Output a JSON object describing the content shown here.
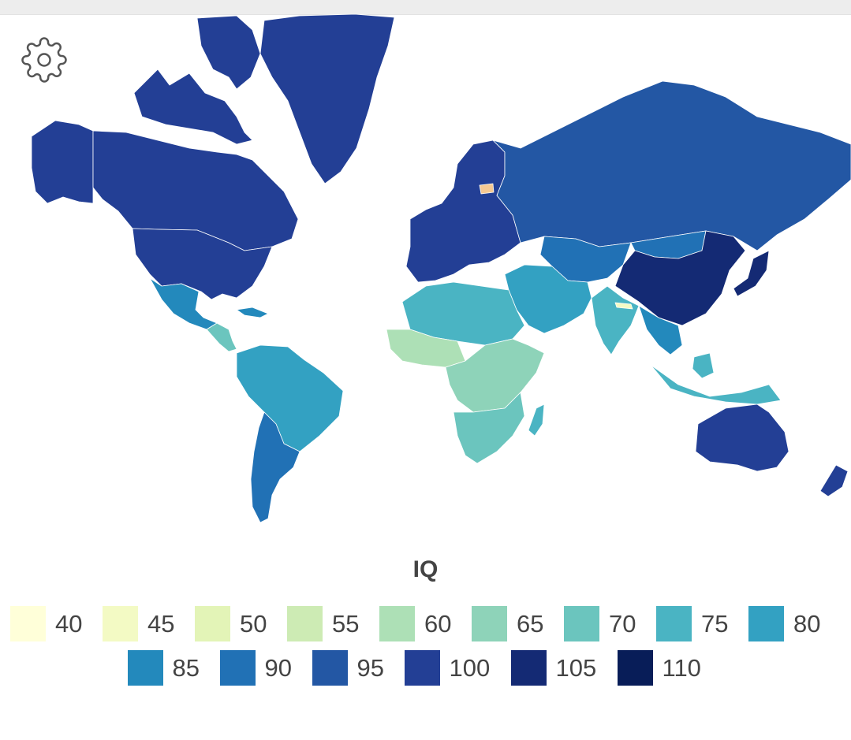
{
  "map": {
    "legend_title": "IQ",
    "scale": [
      {
        "label": "40",
        "value": 40,
        "color": "#ffffd9"
      },
      {
        "label": "45",
        "value": 45,
        "color": "#f3fac4"
      },
      {
        "label": "50",
        "value": 50,
        "color": "#e3f4b7"
      },
      {
        "label": "55",
        "value": 55,
        "color": "#cdebb4"
      },
      {
        "label": "60",
        "value": 60,
        "color": "#ade0b6"
      },
      {
        "label": "65",
        "value": 65,
        "color": "#8ed3b9"
      },
      {
        "label": "70",
        "value": 70,
        "color": "#6bc5be"
      },
      {
        "label": "75",
        "value": 75,
        "color": "#4ab4c3"
      },
      {
        "label": "80",
        "value": 80,
        "color": "#33a1c2"
      },
      {
        "label": "85",
        "value": 85,
        "color": "#2389bc"
      },
      {
        "label": "90",
        "value": 90,
        "color": "#2171b5"
      },
      {
        "label": "95",
        "value": 95,
        "color": "#2357a4"
      },
      {
        "label": "100",
        "value": 100,
        "color": "#233f95"
      },
      {
        "label": "105",
        "value": 105,
        "color": "#142a74"
      },
      {
        "label": "110",
        "value": 110,
        "color": "#081d58"
      }
    ],
    "regions": [
      {
        "name": "greenland",
        "color": "#233f95"
      },
      {
        "name": "canada",
        "color": "#233f95"
      },
      {
        "name": "alaska",
        "color": "#233f95"
      },
      {
        "name": "usa",
        "color": "#233f95"
      },
      {
        "name": "mexico",
        "color": "#2389bc"
      },
      {
        "name": "central-america",
        "color": "#6bc5be"
      },
      {
        "name": "caribbean",
        "color": "#2389bc"
      },
      {
        "name": "south-america-north",
        "color": "#33a1c2"
      },
      {
        "name": "south-america-south",
        "color": "#2171b5"
      },
      {
        "name": "europe",
        "color": "#233f95"
      },
      {
        "name": "russia",
        "color": "#2357a4"
      },
      {
        "name": "central-asia",
        "color": "#2171b5"
      },
      {
        "name": "middle-east",
        "color": "#33a1c2"
      },
      {
        "name": "north-africa",
        "color": "#4ab4c3"
      },
      {
        "name": "west-africa",
        "color": "#ade0b6"
      },
      {
        "name": "central-africa",
        "color": "#8ed3b9"
      },
      {
        "name": "southern-africa",
        "color": "#6bc5be"
      },
      {
        "name": "madagascar",
        "color": "#4ab4c3"
      },
      {
        "name": "india",
        "color": "#4ab4c3"
      },
      {
        "name": "china",
        "color": "#142a74"
      },
      {
        "name": "mongolia",
        "color": "#2171b5"
      },
      {
        "name": "japan",
        "color": "#142a74"
      },
      {
        "name": "southeast-asia",
        "color": "#2389bc"
      },
      {
        "name": "indonesia",
        "color": "#4ab4c3"
      },
      {
        "name": "australia",
        "color": "#233f95"
      },
      {
        "name": "new-zealand",
        "color": "#233f95"
      },
      {
        "name": "estonia",
        "color": "#f6c993"
      },
      {
        "name": "nepal",
        "color": "#f3fac4"
      }
    ]
  },
  "icons": {
    "settings": "gear-icon"
  }
}
